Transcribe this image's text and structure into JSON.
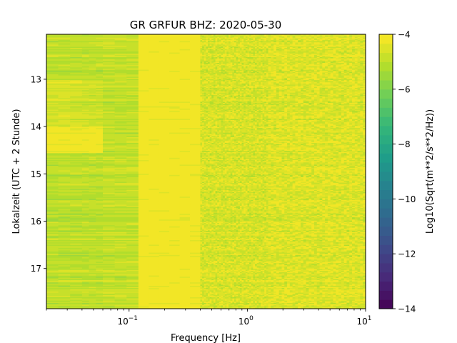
{
  "chart_data": {
    "type": "heatmap",
    "title": "GR GRFUR  BHZ: 2020-05-30",
    "xlabel": "Frequency [Hz]",
    "ylabel": "Lokalzeit (UTC + 2 Stunde)",
    "x_scale": "log",
    "xlim": [
      0.02,
      10
    ],
    "x_ticks": [
      {
        "value": 0.1,
        "base": "10",
        "exp": "−1"
      },
      {
        "value": 1,
        "base": "10",
        "exp": "0"
      },
      {
        "value": 10,
        "base": "10",
        "exp": "1"
      }
    ],
    "ylim": [
      12.05,
      17.85
    ],
    "y_inverted": true,
    "y_ticks": [
      "13",
      "14",
      "15",
      "16",
      "17"
    ],
    "colorbar": {
      "label": "Log10(Sqrt(m**2/s**2/Hz))",
      "min": -14,
      "max": -4,
      "levels": 30,
      "colormap": "viridis",
      "ticks": [
        "−4",
        "−6",
        "−8",
        "−10",
        "−12",
        "−14"
      ]
    },
    "bands": [
      {
        "f_from": 0.02,
        "f_to": 0.04,
        "level": -5.0,
        "rows_13_to_14": -4.6,
        "rows_14_to_14_4": -4.2
      },
      {
        "f_from": 0.04,
        "f_to": 0.06,
        "level": -5.0,
        "rows_13_to_14": -4.7,
        "rows_14_to_14_4": -4.1
      },
      {
        "f_from": 0.06,
        "f_to": 0.12,
        "level": -4.9
      },
      {
        "f_from": 0.12,
        "f_to": 0.4,
        "level": -4.1
      },
      {
        "f_from": 0.4,
        "f_to": 1.5,
        "level": -4.6
      },
      {
        "f_from": 1.5,
        "f_to": 10,
        "level": -4.5
      }
    ]
  }
}
